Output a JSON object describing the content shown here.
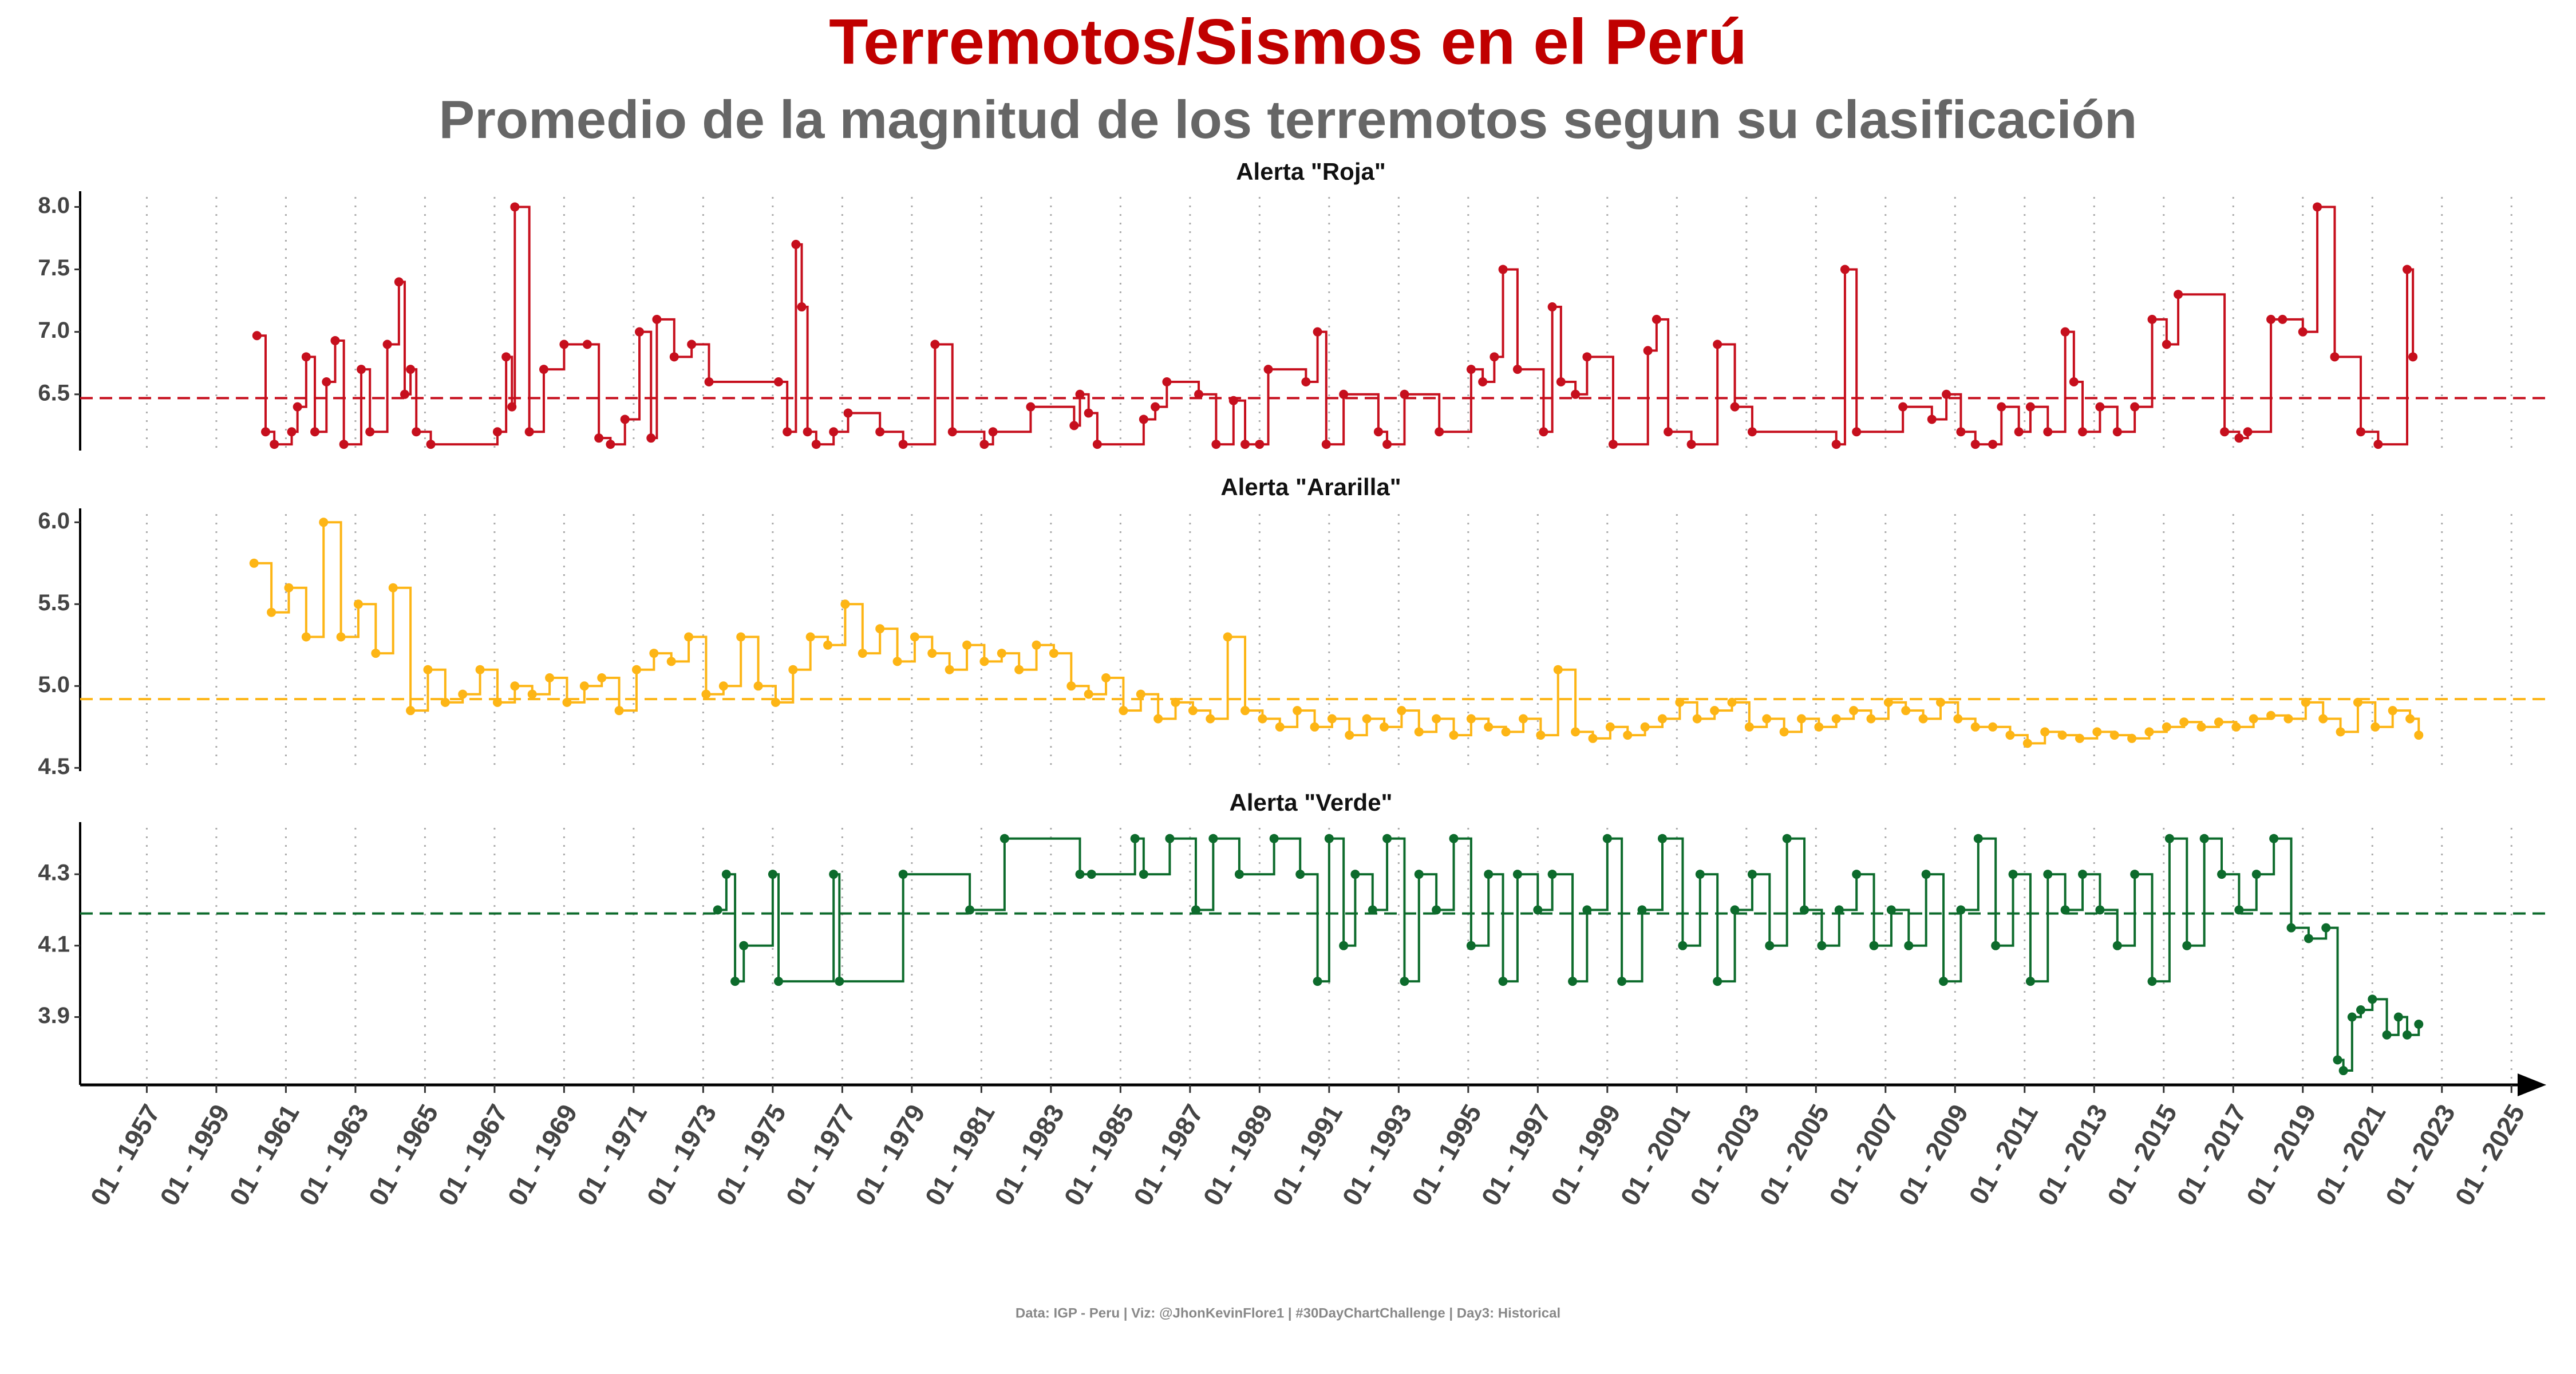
{
  "header": {
    "title": "Terremotos/Sismos en el Perú",
    "subtitle": "Promedio de la magnitud de los terremotos segun su clasificación"
  },
  "caption": "Data: IGP - Peru | Viz: @JhonKevinFlore1 | #30DayChartChallenge | Day3: Historical",
  "chart_data": [
    {
      "type": "line",
      "step": true,
      "title": "Alerta \"Roja\"",
      "color": "#c60f1d",
      "mean": 6.47,
      "ylim": [
        6.05,
        8.08
      ],
      "yticks": [
        6.5,
        {
          "value": 7,
          "label": "7.0"
        },
        7.5,
        {
          "value": 8,
          "label": "8.0"
        }
      ],
      "x": [
        "1960-03",
        "1960-06",
        "1960-09",
        "1961-03",
        "1961-05",
        "1961-08",
        "1961-11",
        "1962-03",
        "1962-06",
        "1962-09",
        "1963-03",
        "1963-06",
        "1963-12",
        "1964-04",
        "1964-06",
        "1964-08",
        "1964-10",
        "1965-03",
        "1967-02",
        "1967-05",
        "1967-07",
        "1967-08",
        "1968-01",
        "1968-06",
        "1969-01",
        "1969-09",
        "1970-01",
        "1970-05",
        "1970-10",
        "1971-03",
        "1971-07",
        "1971-09",
        "1972-03",
        "1972-09",
        "1973-03",
        "1975-03",
        "1975-06",
        "1975-09",
        "1975-11",
        "1976-01",
        "1976-04",
        "1976-10",
        "1977-03",
        "1978-02",
        "1978-10",
        "1979-09",
        "1980-03",
        "1981-02",
        "1981-05",
        "1982-06",
        "1983-09",
        "1983-11",
        "1984-02",
        "1984-05",
        "1985-09",
        "1986-01",
        "1986-05",
        "1987-04",
        "1987-10",
        "1988-04",
        "1988-08",
        "1989-01",
        "1989-04",
        "1990-05",
        "1990-09",
        "1990-12",
        "1991-06",
        "1992-06",
        "1992-09",
        "1993-03",
        "1994-03",
        "1995-02",
        "1995-06",
        "1995-10",
        "1996-01",
        "1996-06",
        "1997-03",
        "1997-06",
        "1997-09",
        "1998-02",
        "1998-06",
        "1999-03",
        "2000-03",
        "2000-06",
        "2000-10",
        "2001-06",
        "2002-03",
        "2002-09",
        "2003-03",
        "2005-08",
        "2005-11",
        "2006-03",
        "2007-07",
        "2008-05",
        "2008-10",
        "2009-03",
        "2009-08",
        "2010-02",
        "2010-05",
        "2010-11",
        "2011-03",
        "2011-09",
        "2012-03",
        "2012-06",
        "2012-09",
        "2013-03",
        "2013-09",
        "2014-03",
        "2014-09",
        "2015-02",
        "2015-06",
        "2016-10",
        "2017-03",
        "2017-06",
        "2018-02",
        "2018-06",
        "2019-01",
        "2019-06",
        "2019-12",
        "2020-09",
        "2021-03",
        "2022-01",
        "2022-03"
      ],
      "values": [
        6.97,
        6.2,
        6.1,
        6.2,
        6.4,
        6.8,
        6.2,
        6.6,
        6.93,
        6.1,
        6.7,
        6.2,
        6.9,
        7.4,
        6.5,
        6.7,
        6.2,
        6.1,
        6.2,
        6.8,
        6.4,
        8.0,
        6.2,
        6.7,
        6.9,
        6.9,
        6.15,
        6.1,
        6.3,
        7.0,
        6.15,
        7.1,
        6.8,
        6.9,
        6.6,
        6.6,
        6.2,
        7.7,
        7.2,
        6.2,
        6.1,
        6.2,
        6.35,
        6.2,
        6.1,
        6.9,
        6.2,
        6.1,
        6.2,
        6.4,
        6.25,
        6.5,
        6.35,
        6.1,
        6.3,
        6.4,
        6.6,
        6.5,
        6.1,
        6.45,
        6.1,
        6.1,
        6.7,
        6.6,
        7.0,
        6.1,
        6.5,
        6.2,
        6.1,
        6.5,
        6.2,
        6.7,
        6.6,
        6.8,
        7.5,
        6.7,
        6.2,
        7.2,
        6.6,
        6.5,
        6.8,
        6.1,
        6.85,
        7.1,
        6.2,
        6.1,
        6.9,
        6.4,
        6.2,
        6.1,
        7.5,
        6.2,
        6.4,
        6.3,
        6.5,
        6.2,
        6.1,
        6.1,
        6.4,
        6.2,
        6.4,
        6.2,
        7.0,
        6.6,
        6.2,
        6.4,
        6.2,
        6.4,
        7.1,
        6.9,
        7.3,
        6.2,
        6.15,
        6.2,
        7.1,
        7.1,
        7.0,
        8.0,
        6.8,
        6.2,
        6.1,
        7.5,
        6.8
      ]
    },
    {
      "type": "line",
      "step": true,
      "title": "Alerta \"Ararilla\"",
      "color": "#fdb515",
      "mean": 4.92,
      "ylim": [
        4.48,
        6.05
      ],
      "yticks": [
        4.5,
        {
          "value": 5,
          "label": "5.0"
        },
        5.5,
        {
          "value": 6,
          "label": "6.0"
        }
      ],
      "x": [
        "1960-02",
        "1960-08",
        "1961-02",
        "1961-08",
        "1962-02",
        "1962-08",
        "1963-02",
        "1963-08",
        "1964-02",
        "1964-08",
        "1965-02",
        "1965-08",
        "1966-02",
        "1966-08",
        "1967-02",
        "1967-08",
        "1968-02",
        "1968-08",
        "1969-02",
        "1969-08",
        "1970-02",
        "1970-08",
        "1971-02",
        "1971-08",
        "1972-02",
        "1972-08",
        "1973-02",
        "1973-08",
        "1974-02",
        "1974-08",
        "1975-02",
        "1975-08",
        "1976-02",
        "1976-08",
        "1977-02",
        "1977-08",
        "1978-02",
        "1978-08",
        "1979-02",
        "1979-08",
        "1980-02",
        "1980-08",
        "1981-02",
        "1981-08",
        "1982-02",
        "1982-08",
        "1983-02",
        "1983-08",
        "1984-02",
        "1984-08",
        "1985-02",
        "1985-08",
        "1986-02",
        "1986-08",
        "1987-02",
        "1987-08",
        "1988-02",
        "1988-08",
        "1989-02",
        "1989-08",
        "1990-02",
        "1990-08",
        "1991-02",
        "1991-08",
        "1992-02",
        "1992-08",
        "1993-02",
        "1993-08",
        "1994-02",
        "1994-08",
        "1995-02",
        "1995-08",
        "1996-02",
        "1996-08",
        "1997-02",
        "1997-08",
        "1998-02",
        "1998-08",
        "1999-02",
        "1999-08",
        "2000-02",
        "2000-08",
        "2001-02",
        "2001-08",
        "2002-02",
        "2002-08",
        "2003-02",
        "2003-08",
        "2004-02",
        "2004-08",
        "2005-02",
        "2005-08",
        "2006-02",
        "2006-08",
        "2007-02",
        "2007-08",
        "2008-02",
        "2008-08",
        "2009-02",
        "2009-08",
        "2010-02",
        "2010-08",
        "2011-02",
        "2011-08",
        "2012-02",
        "2012-08",
        "2013-02",
        "2013-08",
        "2014-02",
        "2014-08",
        "2015-02",
        "2015-08",
        "2016-02",
        "2016-08",
        "2017-02",
        "2017-08",
        "2018-02",
        "2018-08",
        "2019-02",
        "2019-08",
        "2020-02",
        "2020-08",
        "2021-02",
        "2021-08",
        "2022-02",
        "2022-05"
      ],
      "values": [
        5.75,
        5.45,
        5.6,
        5.3,
        6.0,
        5.3,
        5.5,
        5.2,
        5.6,
        4.85,
        5.1,
        4.9,
        4.95,
        5.1,
        4.9,
        5.0,
        4.95,
        5.05,
        4.9,
        5.0,
        5.05,
        4.85,
        5.1,
        5.2,
        5.15,
        5.3,
        4.95,
        5.0,
        5.3,
        5.0,
        4.9,
        5.1,
        5.3,
        5.25,
        5.5,
        5.2,
        5.35,
        5.15,
        5.3,
        5.2,
        5.1,
        5.25,
        5.15,
        5.2,
        5.1,
        5.25,
        5.2,
        5.0,
        4.95,
        5.05,
        4.85,
        4.95,
        4.8,
        4.9,
        4.85,
        4.8,
        5.3,
        4.85,
        4.8,
        4.75,
        4.85,
        4.75,
        4.8,
        4.7,
        4.8,
        4.75,
        4.85,
        4.72,
        4.8,
        4.7,
        4.8,
        4.75,
        4.72,
        4.8,
        4.7,
        5.1,
        4.72,
        4.68,
        4.75,
        4.7,
        4.75,
        4.8,
        4.9,
        4.8,
        4.85,
        4.9,
        4.75,
        4.8,
        4.72,
        4.8,
        4.75,
        4.8,
        4.85,
        4.8,
        4.9,
        4.85,
        4.8,
        4.9,
        4.8,
        4.75,
        4.75,
        4.7,
        4.65,
        4.72,
        4.7,
        4.68,
        4.72,
        4.7,
        4.68,
        4.72,
        4.75,
        4.78,
        4.75,
        4.78,
        4.75,
        4.8,
        4.82,
        4.8,
        4.9,
        4.8,
        4.72,
        4.9,
        4.75,
        4.85,
        4.8,
        4.7
      ]
    },
    {
      "type": "line",
      "step": true,
      "title": "Alerta \"Verde\"",
      "color": "#0d6b2c",
      "mean": 4.19,
      "ylim": [
        3.71,
        4.43
      ],
      "yticks": [
        3.9,
        4.1,
        4.3
      ],
      "xlim": [
        "1955-02",
        "2026-01"
      ],
      "xticks": [
        {
          "value": "1957-01",
          "label": "01 - 1957"
        },
        {
          "value": "1959-01",
          "label": "01 - 1959"
        },
        {
          "value": "1961-01",
          "label": "01 - 1961"
        },
        {
          "value": "1963-01",
          "label": "01 - 1963"
        },
        {
          "value": "1965-01",
          "label": "01 - 1965"
        },
        {
          "value": "1967-01",
          "label": "01 - 1967"
        },
        {
          "value": "1969-01",
          "label": "01 - 1969"
        },
        {
          "value": "1971-01",
          "label": "01 - 1971"
        },
        {
          "value": "1973-01",
          "label": "01 - 1973"
        },
        {
          "value": "1975-01",
          "label": "01 - 1975"
        },
        {
          "value": "1977-01",
          "label": "01 - 1977"
        },
        {
          "value": "1979-01",
          "label": "01 - 1979"
        },
        {
          "value": "1981-01",
          "label": "01 - 1981"
        },
        {
          "value": "1983-01",
          "label": "01 - 1983"
        },
        {
          "value": "1985-01",
          "label": "01 - 1985"
        },
        {
          "value": "1987-01",
          "label": "01 - 1987"
        },
        {
          "value": "1989-01",
          "label": "01 - 1989"
        },
        {
          "value": "1991-01",
          "label": "01 - 1991"
        },
        {
          "value": "1993-01",
          "label": "01 - 1993"
        },
        {
          "value": "1995-01",
          "label": "01 - 1995"
        },
        {
          "value": "1997-01",
          "label": "01 - 1997"
        },
        {
          "value": "1999-01",
          "label": "01 - 1999"
        },
        {
          "value": "2001-01",
          "label": "01 - 2001"
        },
        {
          "value": "2003-01",
          "label": "01 - 2003"
        },
        {
          "value": "2005-01",
          "label": "01 - 2005"
        },
        {
          "value": "2007-01",
          "label": "01 - 2007"
        },
        {
          "value": "2009-01",
          "label": "01 - 2009"
        },
        {
          "value": "2011-01",
          "label": "01 - 2011"
        },
        {
          "value": "2013-01",
          "label": "01 - 2013"
        },
        {
          "value": "2015-01",
          "label": "01 - 2015"
        },
        {
          "value": "2017-01",
          "label": "01 - 2017"
        },
        {
          "value": "2019-01",
          "label": "01 - 2019"
        },
        {
          "value": "2021-01",
          "label": "01 - 2021"
        },
        {
          "value": "2023-01",
          "label": "01 - 2023"
        },
        {
          "value": "2025-01",
          "label": "01 - 2025"
        }
      ],
      "x": [
        "1973-06",
        "1973-09",
        "1973-12",
        "1974-03",
        "1975-01",
        "1975-03",
        "1976-10",
        "1976-12",
        "1978-10",
        "1980-09",
        "1981-09",
        "1983-11",
        "1984-03",
        "1985-06",
        "1985-09",
        "1986-06",
        "1987-03",
        "1987-09",
        "1988-06",
        "1989-06",
        "1990-03",
        "1990-09",
        "1991-01",
        "1991-06",
        "1991-10",
        "1992-04",
        "1992-09",
        "1993-03",
        "1993-08",
        "1994-02",
        "1994-08",
        "1995-02",
        "1995-08",
        "1996-01",
        "1996-06",
        "1997-01",
        "1997-06",
        "1998-01",
        "1998-06",
        "1999-01",
        "1999-06",
        "2000-01",
        "2000-08",
        "2001-03",
        "2001-09",
        "2002-03",
        "2002-09",
        "2003-03",
        "2003-09",
        "2004-03",
        "2004-09",
        "2005-03",
        "2005-09",
        "2006-03",
        "2006-09",
        "2007-03",
        "2007-09",
        "2008-03",
        "2008-09",
        "2009-03",
        "2009-09",
        "2010-03",
        "2010-09",
        "2011-03",
        "2011-09",
        "2012-03",
        "2012-09",
        "2013-03",
        "2013-09",
        "2014-03",
        "2014-09",
        "2015-03",
        "2015-09",
        "2016-03",
        "2016-09",
        "2017-03",
        "2017-09",
        "2018-03",
        "2018-09",
        "2019-03",
        "2019-09",
        "2020-01",
        "2020-03",
        "2020-06",
        "2020-09",
        "2021-01",
        "2021-06",
        "2021-10",
        "2022-01",
        "2022-05"
      ],
      "values": [
        4.2,
        4.3,
        4.0,
        4.1,
        4.3,
        4.0,
        4.3,
        4.0,
        4.3,
        4.2,
        4.4,
        4.3,
        4.3,
        4.4,
        4.3,
        4.4,
        4.2,
        4.4,
        4.3,
        4.4,
        4.3,
        4.0,
        4.4,
        4.1,
        4.3,
        4.2,
        4.4,
        4.0,
        4.3,
        4.2,
        4.4,
        4.1,
        4.3,
        4.0,
        4.3,
        4.2,
        4.3,
        4.0,
        4.2,
        4.4,
        4.0,
        4.2,
        4.4,
        4.1,
        4.3,
        4.0,
        4.2,
        4.3,
        4.1,
        4.4,
        4.2,
        4.1,
        4.2,
        4.3,
        4.1,
        4.2,
        4.1,
        4.3,
        4.0,
        4.2,
        4.4,
        4.1,
        4.3,
        4.0,
        4.3,
        4.2,
        4.3,
        4.2,
        4.1,
        4.3,
        4.0,
        4.4,
        4.1,
        4.4,
        4.3,
        4.2,
        4.3,
        4.4,
        4.15,
        4.12,
        4.15,
        3.78,
        3.75,
        3.9,
        3.92,
        3.95,
        3.85,
        3.9,
        3.85,
        3.88
      ]
    }
  ]
}
